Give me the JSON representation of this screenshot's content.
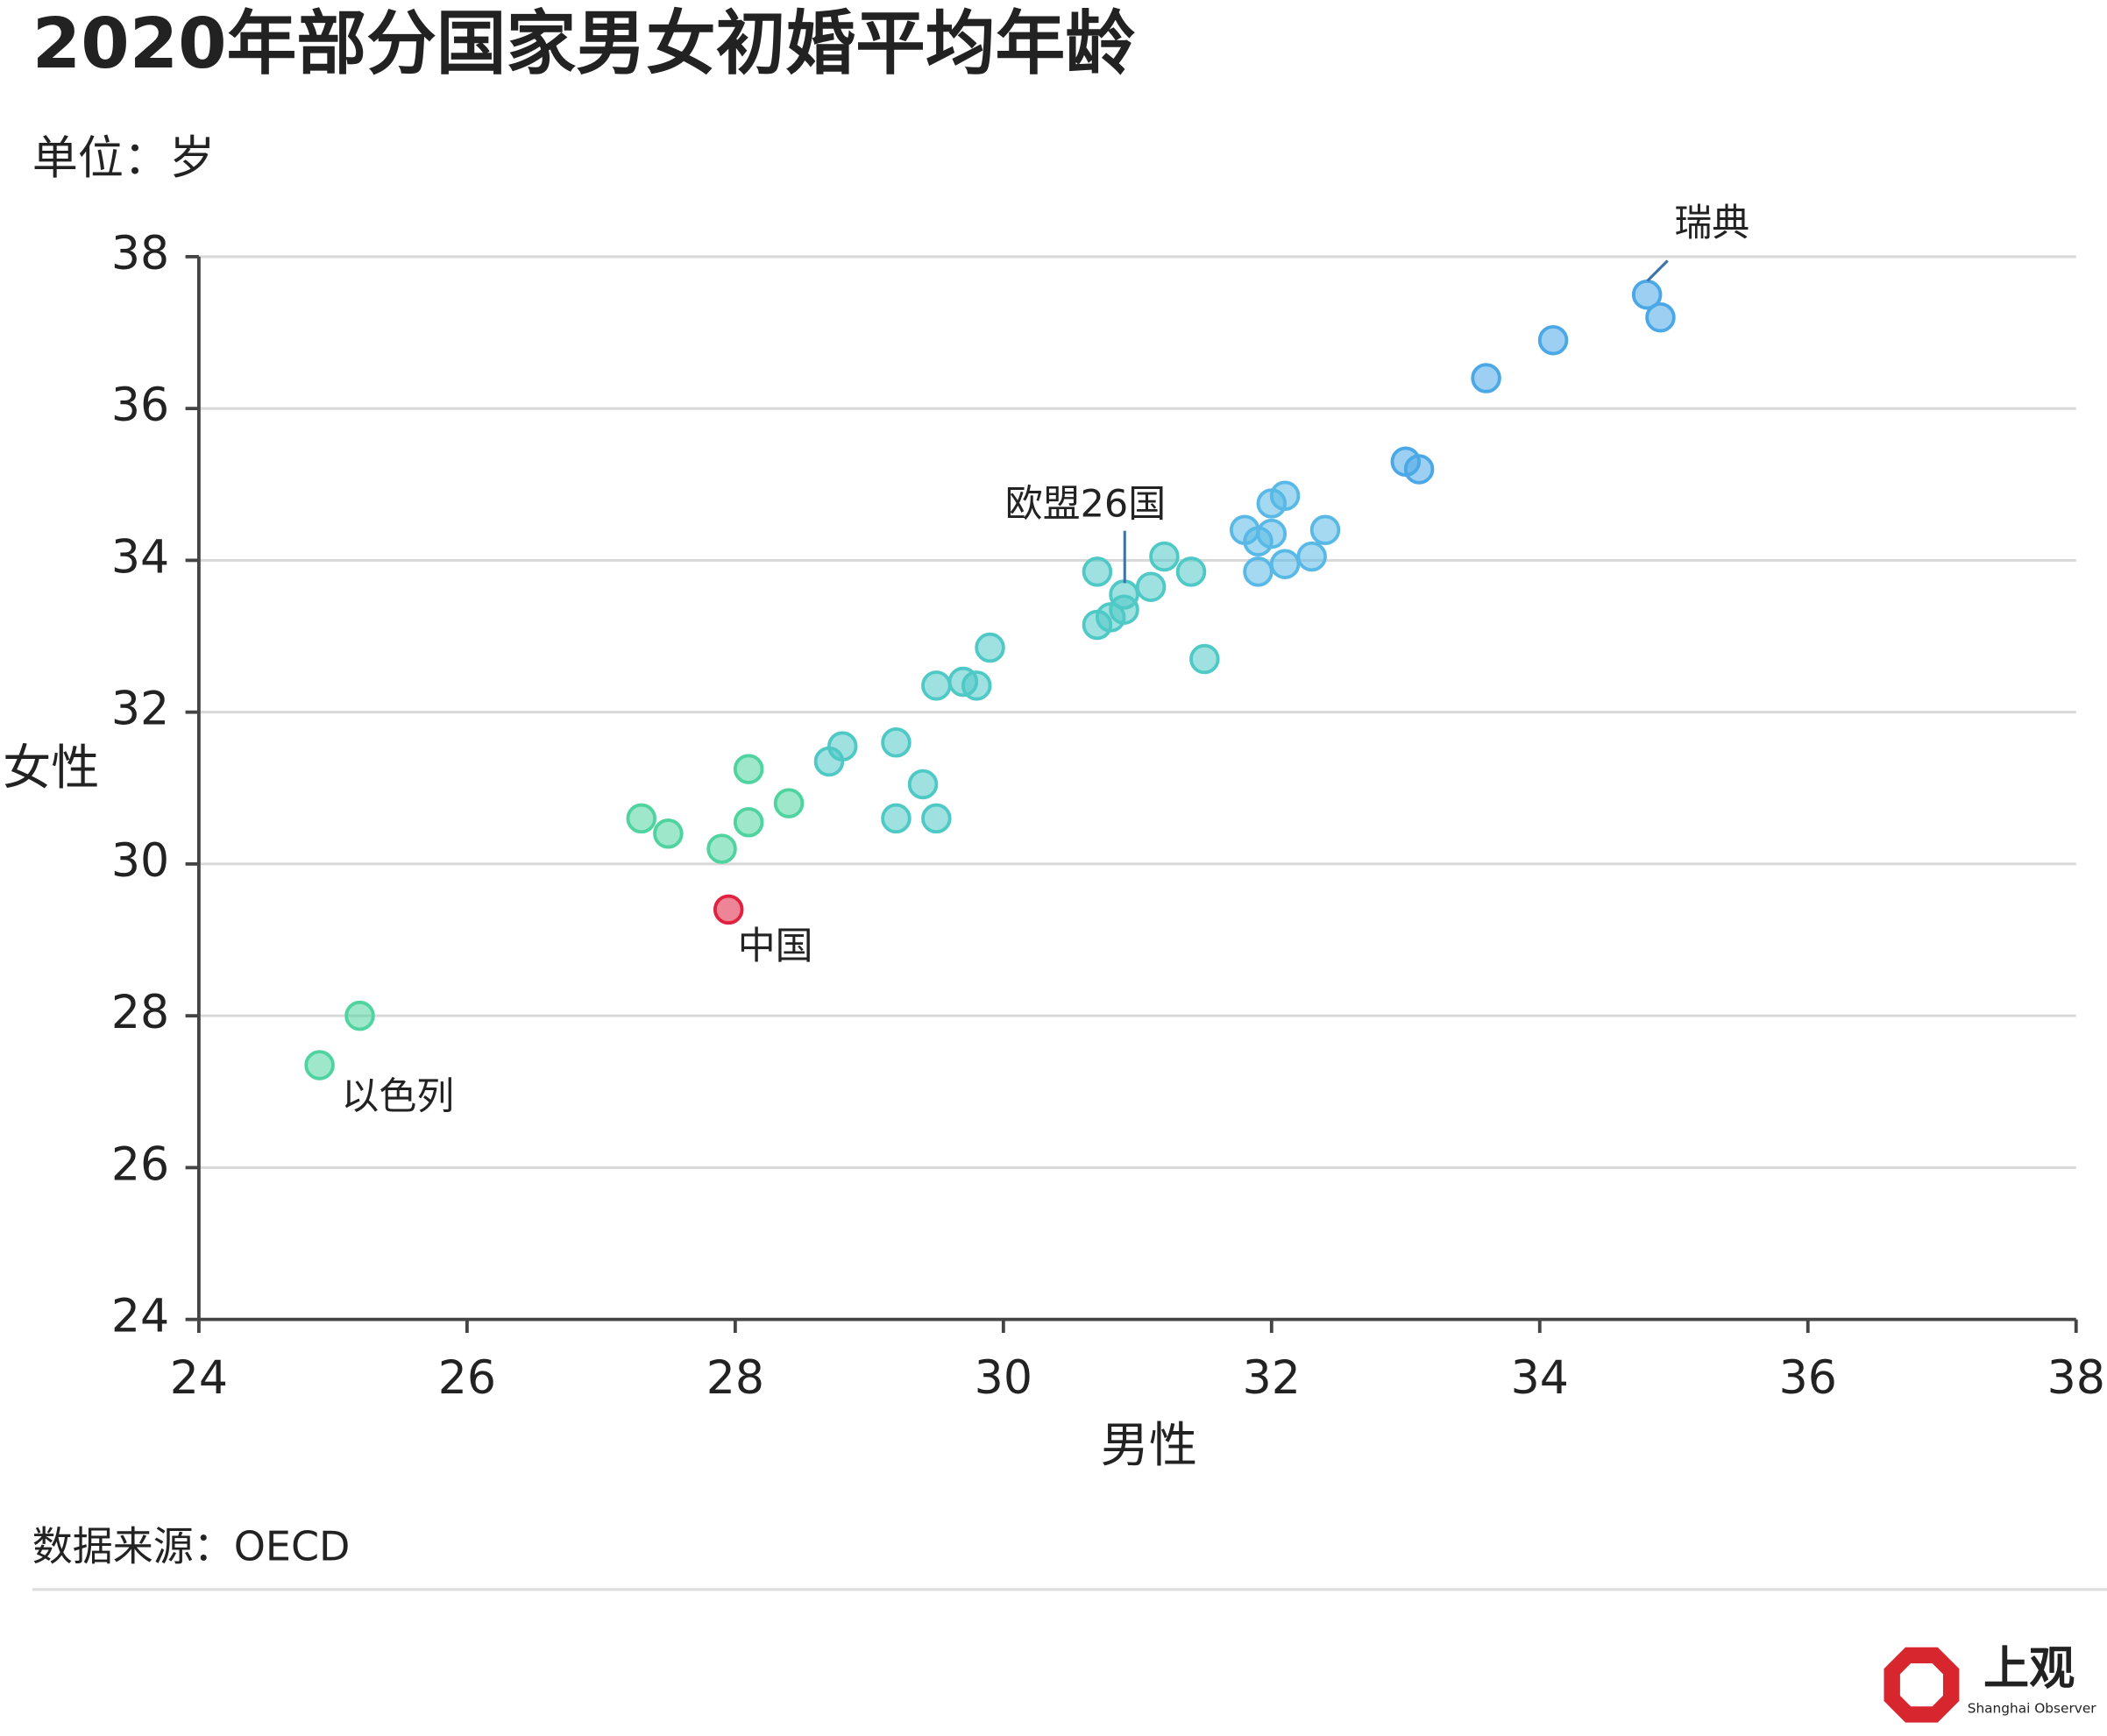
{
  "chart_data": {
    "type": "scatter",
    "title": "2020年部分国家男女初婚平均年龄",
    "subtitle": "单位：岁",
    "x_label": "男性",
    "y_label": "女性",
    "source": "数据来源：OECD",
    "logo": {
      "name": "上观",
      "english": "Shanghai Observer"
    },
    "annotations": [
      "瑞典",
      "欧盟26国",
      "中国",
      "以色列"
    ],
    "x": [
      24.9,
      25.2,
      27.3,
      27.5,
      27.9,
      27.95,
      28.1,
      28.1,
      28.4,
      28.7,
      28.8,
      29.2,
      29.2,
      29.4,
      29.5,
      29.5,
      29.7,
      29.8,
      29.9,
      30.7,
      30.7,
      30.8,
      30.9,
      30.9,
      31.1,
      31.2,
      31.4,
      31.5,
      31.8,
      31.9,
      31.9,
      32.0,
      32.0,
      32.1,
      32.1,
      32.3,
      32.4,
      33.0,
      33.1,
      33.6,
      34.1,
      34.8,
      34.9
    ],
    "values": [
      27.35,
      28.0,
      30.6,
      30.4,
      30.2,
      29.4,
      31.25,
      30.55,
      30.8,
      31.35,
      31.55,
      31.6,
      30.6,
      31.05,
      30.6,
      32.35,
      32.4,
      32.35,
      32.85,
      33.85,
      33.15,
      33.25,
      33.35,
      33.55,
      33.65,
      34.05,
      33.85,
      32.7,
      34.4,
      34.25,
      33.85,
      34.75,
      34.35,
      34.85,
      33.95,
      34.05,
      34.4,
      35.3,
      35.2,
      36.4,
      36.9,
      37.5,
      37.2
    ],
    "colors": [
      "#4fd39f",
      "#4fd39f",
      "#4fd39f",
      "#4fd39f",
      "#4fd39f",
      "#e0213f",
      "#4fd39f",
      "#4fd39f",
      "#4fd39f",
      "#4fc9c6",
      "#4fc9c6",
      "#4fc9c6",
      "#4fc9c6",
      "#4fc9c6",
      "#4fc9c6",
      "#4fc9c6",
      "#4fc9c6",
      "#4fc9c6",
      "#4fc9c6",
      "#4fc9c6",
      "#4fc9c6",
      "#4fc9c6",
      "#4fc9c6",
      "#4fc9c6",
      "#4fc9c6",
      "#4fc9c6",
      "#4fc9c6",
      "#4fc9c6",
      "#59b9e6",
      "#59b9e6",
      "#59b9e6",
      "#59b9e6",
      "#59b9e6",
      "#59b9e6",
      "#59b9e6",
      "#59b9e6",
      "#59b9e6",
      "#4aa8e6",
      "#4aa8e6",
      "#4aa8e6",
      "#4aa8e6",
      "#4aa8e6",
      "#4aa8e6"
    ],
    "xlim": [
      24,
      38
    ],
    "xticks": [
      24,
      26,
      28,
      30,
      32,
      34,
      36,
      38
    ],
    "ylim": [
      24,
      38
    ],
    "yticks": [
      24,
      26,
      28,
      30,
      32,
      34,
      36,
      38
    ],
    "grid": true
  }
}
